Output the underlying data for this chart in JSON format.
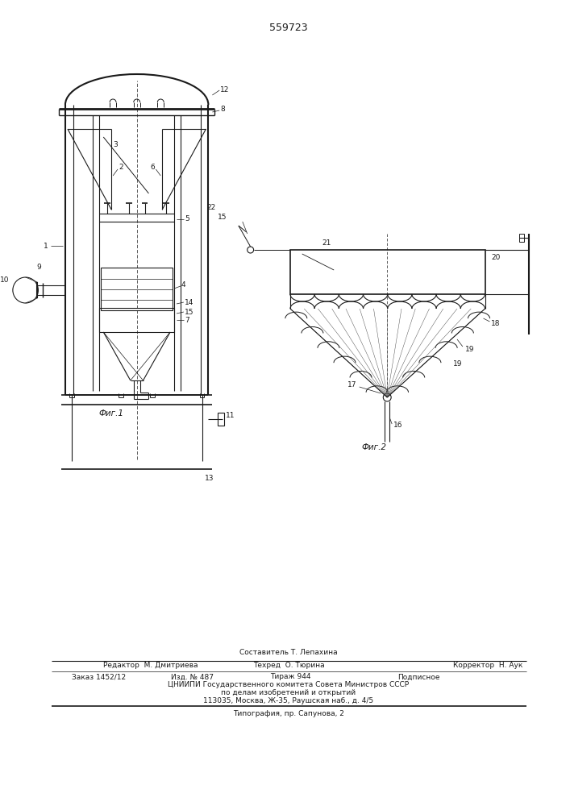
{
  "title": "559723",
  "bg_color": "#ffffff",
  "line_color": "#1a1a1a",
  "fig1_caption": "Фиг.1",
  "fig2_caption": "Фиг.2",
  "footer_lines": [
    "Составитель Т. Лепахина",
    "Редактор  М. Дмитриева",
    "Техред  О. Тюрина",
    "Корректор  Н. Аук",
    "Заказ 1452/12",
    "Изд. № 487",
    "Тираж 944",
    "Подписное",
    "ЦНИИПИ Государственного комитета Совета Министров СССР",
    "по делам изобретений и открытий",
    "113035, Москва, Ж-35, Раушская наб., д. 4/5",
    "Типография, пр. Сапунова, 2"
  ]
}
